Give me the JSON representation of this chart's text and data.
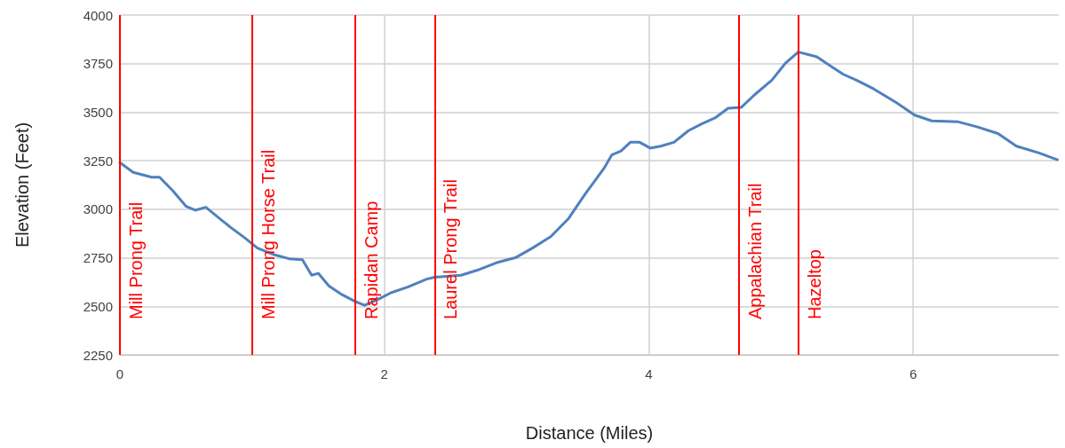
{
  "chart_data": {
    "type": "line",
    "xlabel": "Distance (Miles)",
    "ylabel": "Elevation (Feet)",
    "xlim": [
      0,
      7.1
    ],
    "xticks": [
      0,
      2,
      4,
      6
    ],
    "ylim": [
      2250,
      4000
    ],
    "yticks": [
      2250,
      2500,
      2750,
      3000,
      3250,
      3500,
      3750,
      4000
    ],
    "grid": true,
    "marker": "none",
    "line_style": "solid",
    "series": [
      {
        "color": "#4f81bd",
        "x": [
          0,
          0.1,
          0.24,
          0.3,
          0.4,
          0.5,
          0.57,
          0.65,
          0.74,
          0.84,
          0.94,
          1.04,
          1.17,
          1.28,
          1.38,
          1.45,
          1.5,
          1.58,
          1.68,
          1.78,
          1.85,
          1.95,
          2.05,
          2.18,
          2.32,
          2.38,
          2.58,
          2.72,
          2.85,
          2.99,
          3.12,
          3.26,
          3.39,
          3.52,
          3.66,
          3.72,
          3.79,
          3.86,
          3.93,
          4.01,
          4.09,
          4.19,
          4.3,
          4.4,
          4.5,
          4.6,
          4.7,
          4.8,
          4.93,
          5.03,
          5.13,
          5.27,
          5.37,
          5.47,
          5.57,
          5.7,
          5.87,
          6.01,
          6.14,
          6.34,
          6.48,
          6.64,
          6.78,
          6.95,
          7.09
        ],
        "values": [
          3240,
          3190,
          3165,
          3165,
          3095,
          3015,
          2995,
          3010,
          2960,
          2905,
          2855,
          2800,
          2765,
          2745,
          2740,
          2660,
          2670,
          2605,
          2560,
          2525,
          2505,
          2535,
          2570,
          2600,
          2640,
          2650,
          2660,
          2690,
          2725,
          2750,
          2800,
          2860,
          2950,
          3080,
          3210,
          3280,
          3300,
          3345,
          3345,
          3315,
          3325,
          3345,
          3405,
          3440,
          3470,
          3520,
          3525,
          3590,
          3665,
          3750,
          3810,
          3785,
          3740,
          3695,
          3665,
          3620,
          3550,
          3485,
          3455,
          3450,
          3425,
          3390,
          3325,
          3290,
          3255
        ]
      }
    ],
    "ref_lines": [
      {
        "axis": "x",
        "value": 0,
        "label": "Mill Prong Trail",
        "color": "#ff0000"
      },
      {
        "axis": "x",
        "value": 1,
        "label": "Mill Prong Horse Trail",
        "color": "#ff0000"
      },
      {
        "axis": "x",
        "value": 1.78,
        "label": "Rapidan Camp",
        "color": "#ff0000"
      },
      {
        "axis": "x",
        "value": 2.38,
        "label": "Laurel Prong Trail",
        "color": "#ff0000"
      },
      {
        "axis": "x",
        "value": 4.68,
        "label": "Appalachian Trail",
        "color": "#ff0000"
      },
      {
        "axis": "x",
        "value": 5.13,
        "label": "Hazeltop",
        "color": "#ff0000"
      }
    ]
  }
}
